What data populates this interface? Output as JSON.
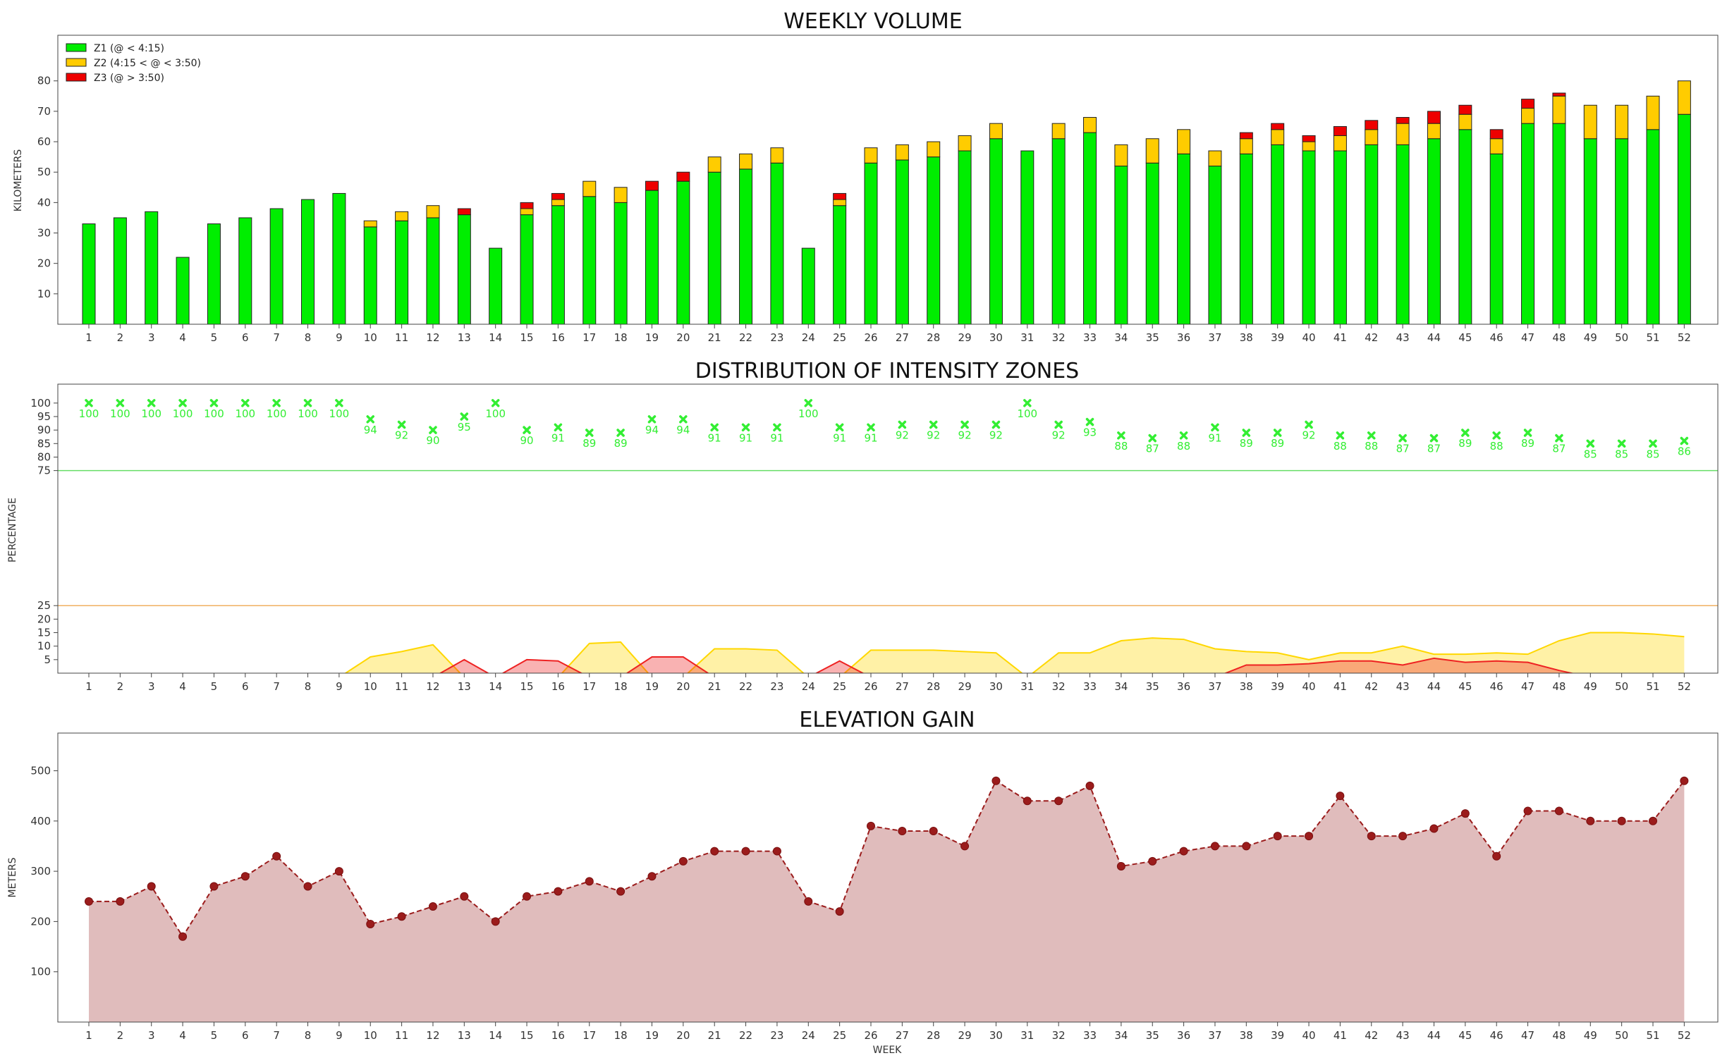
{
  "chart_data": [
    {
      "type": "bar",
      "stacked": true,
      "title": "WEEKLY VOLUME",
      "xlabel": "",
      "ylabel": "KILOMETERS",
      "ylim": [
        0,
        95
      ],
      "yticks": [
        10,
        20,
        30,
        40,
        50,
        60,
        70,
        80
      ],
      "legend_position": "top-left",
      "categories": [
        "1",
        "2",
        "3",
        "4",
        "5",
        "6",
        "7",
        "8",
        "9",
        "10",
        "11",
        "12",
        "13",
        "14",
        "15",
        "16",
        "17",
        "18",
        "19",
        "20",
        "21",
        "22",
        "23",
        "24",
        "25",
        "26",
        "27",
        "28",
        "29",
        "30",
        "31",
        "32",
        "33",
        "34",
        "35",
        "36",
        "37",
        "38",
        "39",
        "40",
        "41",
        "42",
        "43",
        "44",
        "45",
        "46",
        "47",
        "48",
        "49",
        "50",
        "51",
        "52"
      ],
      "series": [
        {
          "name": "Z1 (@ < 4:15)",
          "color": "#00ee00",
          "values": [
            33,
            35,
            37,
            22,
            33,
            35,
            38,
            41,
            43,
            32,
            34,
            35,
            36,
            25,
            36,
            39,
            42,
            40,
            44,
            47,
            50,
            51,
            53,
            25,
            39,
            53,
            54,
            55,
            57,
            61,
            57,
            61,
            63,
            52,
            53,
            56,
            52,
            56,
            59,
            57,
            57,
            59,
            59,
            61,
            64,
            56,
            66,
            66,
            61,
            61,
            64,
            69
          ]
        },
        {
          "name": "Z2 (4:15 < @ < 3:50)",
          "color": "#ffcc00",
          "values": [
            0,
            0,
            0,
            0,
            0,
            0,
            0,
            0,
            0,
            2,
            3,
            4,
            0,
            0,
            2,
            2,
            5,
            5,
            0,
            0,
            5,
            5,
            5,
            0,
            2,
            5,
            5,
            5,
            5,
            5,
            0,
            5,
            5,
            7,
            8,
            8,
            5,
            5,
            5,
            3,
            5,
            5,
            7,
            5,
            5,
            5,
            5,
            9,
            11,
            11,
            11,
            11
          ]
        },
        {
          "name": "Z3 (@ > 3:50)",
          "color": "#ee0000",
          "values": [
            0,
            0,
            0,
            0,
            0,
            0,
            0,
            0,
            0,
            0,
            0,
            0,
            2,
            0,
            2,
            2,
            0,
            0,
            3,
            3,
            0,
            0,
            0,
            0,
            2,
            0,
            0,
            0,
            0,
            0,
            0,
            0,
            0,
            0,
            0,
            0,
            0,
            2,
            2,
            2,
            3,
            3,
            2,
            4,
            3,
            3,
            3,
            1,
            0,
            0,
            0,
            0
          ]
        }
      ]
    },
    {
      "type": "area",
      "title": "DISTRIBUTION OF INTENSITY ZONES",
      "xlabel": "",
      "ylabel": "PERCENTAGE",
      "ylim": [
        0,
        107
      ],
      "yticks": [
        5,
        10,
        15,
        20,
        25,
        75,
        80,
        85,
        90,
        95,
        100
      ],
      "reference_lines": [
        {
          "value": 75,
          "color": "#66dd66"
        },
        {
          "value": 25,
          "color": "#f0b060"
        }
      ],
      "categories": [
        "1",
        "2",
        "3",
        "4",
        "5",
        "6",
        "7",
        "8",
        "9",
        "10",
        "11",
        "12",
        "13",
        "14",
        "15",
        "16",
        "17",
        "18",
        "19",
        "20",
        "21",
        "22",
        "23",
        "24",
        "25",
        "26",
        "27",
        "28",
        "29",
        "30",
        "31",
        "32",
        "33",
        "34",
        "35",
        "36",
        "37",
        "38",
        "39",
        "40",
        "41",
        "42",
        "43",
        "44",
        "45",
        "46",
        "47",
        "48",
        "49",
        "50",
        "51",
        "52"
      ],
      "series": [
        {
          "name": "Z1",
          "style": "markers",
          "color": "#33ee33",
          "values": [
            100,
            100,
            100,
            100,
            100,
            100,
            100,
            100,
            100,
            94,
            92,
            90,
            95,
            100,
            90,
            91,
            89,
            89,
            94,
            94,
            91,
            91,
            91,
            100,
            91,
            91,
            92,
            92,
            92,
            92,
            100,
            92,
            93,
            88,
            87,
            88,
            91,
            89,
            89,
            92,
            88,
            88,
            87,
            87,
            89,
            88,
            89,
            87,
            85,
            85,
            85,
            86
          ]
        },
        {
          "name": "Z2",
          "style": "area",
          "color": "#ffd700",
          "values": [
            0,
            0,
            0,
            0,
            0,
            0,
            0,
            0,
            0,
            6,
            8,
            10.5,
            0,
            0,
            0,
            0,
            11,
            11.5,
            0,
            0,
            9,
            9,
            8.5,
            0,
            0,
            8.5,
            8.5,
            8.5,
            8,
            7.5,
            0,
            7.5,
            7.5,
            12,
            13,
            12.5,
            9,
            8,
            7.5,
            5,
            7.5,
            7.5,
            10,
            7,
            7,
            7.5,
            7,
            12,
            15,
            15,
            14.5,
            13.5
          ]
        },
        {
          "name": "Z3",
          "style": "area",
          "color": "#ee2222",
          "values": [
            0,
            0,
            0,
            0,
            0,
            0,
            0,
            0,
            0,
            0,
            0,
            0,
            5,
            0,
            5,
            4.5,
            0,
            0,
            6,
            6,
            0,
            0,
            0,
            0,
            4.5,
            0,
            0,
            0,
            0,
            0,
            0,
            0,
            0,
            0,
            0,
            0,
            0,
            3,
            3,
            3.5,
            4.5,
            4.5,
            3,
            5.5,
            4,
            4.5,
            4,
            1,
            0,
            0,
            0,
            0
          ]
        }
      ]
    },
    {
      "type": "line",
      "title": "ELEVATION GAIN",
      "xlabel": "WEEK",
      "ylabel": "METERS",
      "ylim": [
        0,
        575
      ],
      "yticks": [
        100,
        200,
        300,
        400,
        500
      ],
      "categories": [
        "1",
        "2",
        "3",
        "4",
        "5",
        "6",
        "7",
        "8",
        "9",
        "10",
        "11",
        "12",
        "13",
        "14",
        "15",
        "16",
        "17",
        "18",
        "19",
        "20",
        "21",
        "22",
        "23",
        "24",
        "25",
        "26",
        "27",
        "28",
        "29",
        "30",
        "31",
        "32",
        "33",
        "34",
        "35",
        "36",
        "37",
        "38",
        "39",
        "40",
        "41",
        "42",
        "43",
        "44",
        "45",
        "46",
        "47",
        "48",
        "49",
        "50",
        "51",
        "52"
      ],
      "series": [
        {
          "name": "",
          "color": "#9b1c1c",
          "fill": "#e0bcbc",
          "values": [
            240,
            240,
            270,
            170,
            270,
            290,
            330,
            270,
            300,
            195,
            210,
            230,
            250,
            200,
            250,
            260,
            280,
            260,
            290,
            320,
            340,
            340,
            340,
            240,
            220,
            390,
            380,
            380,
            350,
            480,
            440,
            440,
            470,
            310,
            320,
            340,
            350,
            350,
            370,
            370,
            450,
            370,
            370,
            385,
            415,
            330,
            420,
            420,
            400,
            400,
            400,
            480
          ]
        }
      ]
    }
  ]
}
